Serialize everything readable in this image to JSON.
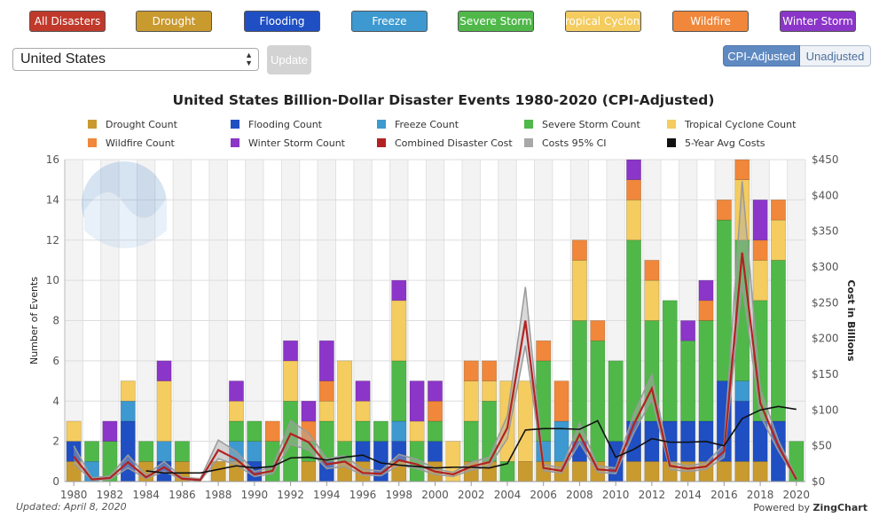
{
  "top_buttons": [
    {
      "label": "All Disasters",
      "color": "#c0392b"
    },
    {
      "label": "Drought",
      "color": "#c99a2e"
    },
    {
      "label": "Flooding",
      "color": "#1f4fc2"
    },
    {
      "label": "Freeze",
      "color": "#3d99cf"
    },
    {
      "label": "Severe Storm",
      "color": "#4fb849"
    },
    {
      "label": "Tropical Cyclone",
      "color": "#f4cc5f"
    },
    {
      "label": "Wildfire",
      "color": "#f0873a"
    },
    {
      "label": "Winter Storm",
      "color": "#8b35c9"
    }
  ],
  "location_select": {
    "value": "United States"
  },
  "update_button": {
    "label": "Update"
  },
  "toggle": {
    "cpi": "CPI-Adjusted",
    "unadjusted": "Unadjusted"
  },
  "footer": {
    "updated": "Updated: April 8, 2020",
    "powered_prefix": "Powered by ",
    "powered_brand": "ZingChart"
  },
  "chart_data": {
    "type": "bar",
    "title": "United States Billion-Dollar Disaster Events 1980-2020 (CPI-Adjusted)",
    "ylabel": "Number of Events",
    "y2label": "Cost in Billions",
    "ylim": [
      0,
      16
    ],
    "y2lim": [
      0,
      450
    ],
    "yticks": [
      "0",
      "2",
      "4",
      "6",
      "8",
      "10",
      "12",
      "14",
      "16"
    ],
    "y2ticks": [
      "$0",
      "$50",
      "$100",
      "$150",
      "$200",
      "$250",
      "$300",
      "$350",
      "$400",
      "$450"
    ],
    "xtick_labels": [
      "1980",
      "1982",
      "1984",
      "1986",
      "1988",
      "1990",
      "1992",
      "1994",
      "1996",
      "1998",
      "2000",
      "2002",
      "2004",
      "2006",
      "2008",
      "2010",
      "2012",
      "2014",
      "2016",
      "2018",
      "2020"
    ],
    "categories": [
      "1980",
      "1981",
      "1982",
      "1983",
      "1984",
      "1985",
      "1986",
      "1987",
      "1988",
      "1989",
      "1990",
      "1991",
      "1992",
      "1993",
      "1994",
      "1995",
      "1996",
      "1997",
      "1998",
      "1999",
      "2000",
      "2001",
      "2002",
      "2003",
      "2004",
      "2005",
      "2006",
      "2007",
      "2008",
      "2009",
      "2010",
      "2011",
      "2012",
      "2013",
      "2014",
      "2015",
      "2016",
      "2017",
      "2018",
      "2019",
      "2020"
    ],
    "series": [
      {
        "name": "Drought Count",
        "color": "#c99a2e",
        "values": [
          1,
          0,
          0,
          0,
          1,
          0,
          1,
          0,
          1,
          1,
          0,
          0,
          0,
          1,
          0,
          1,
          1,
          0,
          1,
          0,
          1,
          0,
          1,
          1,
          0,
          1,
          1,
          1,
          1,
          1,
          0,
          1,
          1,
          1,
          1,
          1,
          1,
          1,
          1,
          0,
          0
        ]
      },
      {
        "name": "Flooding Count",
        "color": "#1f4fc2",
        "values": [
          1,
          0,
          0,
          3,
          0,
          1,
          0,
          0,
          0,
          0,
          1,
          0,
          0,
          0,
          1,
          0,
          1,
          2,
          1,
          0,
          1,
          0,
          0,
          0,
          0,
          0,
          0,
          0,
          1,
          0,
          2,
          2,
          2,
          2,
          2,
          2,
          4,
          3,
          2,
          3,
          0
        ]
      },
      {
        "name": "Freeze Count",
        "color": "#3d99cf",
        "values": [
          0,
          1,
          0,
          1,
          0,
          1,
          0,
          0,
          0,
          1,
          1,
          0,
          0,
          0,
          0,
          0,
          0,
          0,
          1,
          0,
          0,
          0,
          0,
          0,
          0,
          0,
          1,
          2,
          0,
          0,
          0,
          0,
          0,
          0,
          0,
          0,
          0,
          1,
          0,
          0,
          0
        ]
      },
      {
        "name": "Severe Storm Count",
        "color": "#4fb849",
        "values": [
          0,
          1,
          2,
          0,
          1,
          0,
          1,
          0,
          0,
          1,
          1,
          2,
          4,
          1,
          2,
          1,
          1,
          1,
          3,
          2,
          1,
          0,
          2,
          3,
          1,
          0,
          4,
          0,
          6,
          6,
          4,
          9,
          5,
          6,
          4,
          5,
          8,
          7,
          6,
          8,
          2
        ]
      },
      {
        "name": "Tropical Cyclone Count",
        "color": "#f4cc5f",
        "values": [
          1,
          0,
          0,
          1,
          0,
          3,
          0,
          0,
          0,
          1,
          0,
          0,
          2,
          0,
          1,
          4,
          1,
          0,
          3,
          1,
          0,
          2,
          2,
          1,
          4,
          4,
          0,
          0,
          3,
          0,
          0,
          2,
          2,
          0,
          0,
          0,
          0,
          3,
          2,
          2,
          0
        ]
      },
      {
        "name": "Wildfire Count",
        "color": "#f0873a",
        "values": [
          0,
          0,
          0,
          0,
          0,
          0,
          0,
          0,
          0,
          0,
          0,
          1,
          0,
          1,
          1,
          0,
          0,
          0,
          0,
          0,
          1,
          0,
          1,
          1,
          0,
          0,
          1,
          2,
          1,
          1,
          0,
          1,
          1,
          0,
          0,
          1,
          1,
          1,
          1,
          1,
          0
        ]
      },
      {
        "name": "Winter Storm Count",
        "color": "#8b35c9",
        "values": [
          0,
          0,
          1,
          0,
          0,
          1,
          0,
          0,
          0,
          1,
          0,
          0,
          1,
          1,
          2,
          0,
          1,
          0,
          1,
          2,
          1,
          0,
          0,
          0,
          0,
          0,
          0,
          0,
          0,
          0,
          0,
          1,
          0,
          0,
          1,
          1,
          0,
          0,
          2,
          0,
          0
        ]
      },
      {
        "name": "Combined Disaster Cost",
        "color": "#b22222",
        "line": true,
        "axis": "right",
        "values": [
          35,
          3,
          5,
          27,
          6,
          20,
          4,
          2,
          44,
          31,
          10,
          15,
          67,
          55,
          24,
          28,
          12,
          11,
          30,
          24,
          14,
          10,
          21,
          27,
          75,
          225,
          19,
          15,
          66,
          17,
          15,
          80,
          130,
          22,
          18,
          21,
          42,
          320,
          110,
          50,
          3
        ]
      },
      {
        "name": "Costs 95% CI",
        "color": "#a8a8a8",
        "line": true,
        "axis": "right",
        "ci": true,
        "upper": [
          50,
          5,
          8,
          37,
          9,
          28,
          6,
          4,
          58,
          42,
          14,
          20,
          85,
          68,
          32,
          36,
          17,
          15,
          38,
          31,
          18,
          13,
          27,
          34,
          92,
          272,
          24,
          19,
          82,
          22,
          19,
          95,
          150,
          27,
          22,
          26,
          52,
          420,
          130,
          58,
          5
        ],
        "lower": [
          25,
          2,
          3,
          19,
          4,
          14,
          3,
          1,
          32,
          23,
          7,
          11,
          52,
          44,
          18,
          21,
          9,
          8,
          23,
          18,
          10,
          7,
          16,
          21,
          60,
          190,
          15,
          12,
          54,
          13,
          11,
          68,
          115,
          17,
          14,
          17,
          34,
          275,
          92,
          43,
          2
        ]
      },
      {
        "name": "5-Year Avg Costs",
        "color": "#111111",
        "line": true,
        "axis": "right",
        "start": 4,
        "values": [
          null,
          null,
          null,
          null,
          15,
          12,
          12,
          12,
          17,
          22,
          19,
          21,
          33,
          34,
          30,
          34,
          37,
          26,
          23,
          21,
          19,
          20,
          20,
          19,
          25,
          72,
          74,
          74,
          73,
          85,
          34,
          45,
          60,
          55,
          55,
          56,
          50,
          88,
          100,
          105,
          101
        ]
      }
    ]
  }
}
